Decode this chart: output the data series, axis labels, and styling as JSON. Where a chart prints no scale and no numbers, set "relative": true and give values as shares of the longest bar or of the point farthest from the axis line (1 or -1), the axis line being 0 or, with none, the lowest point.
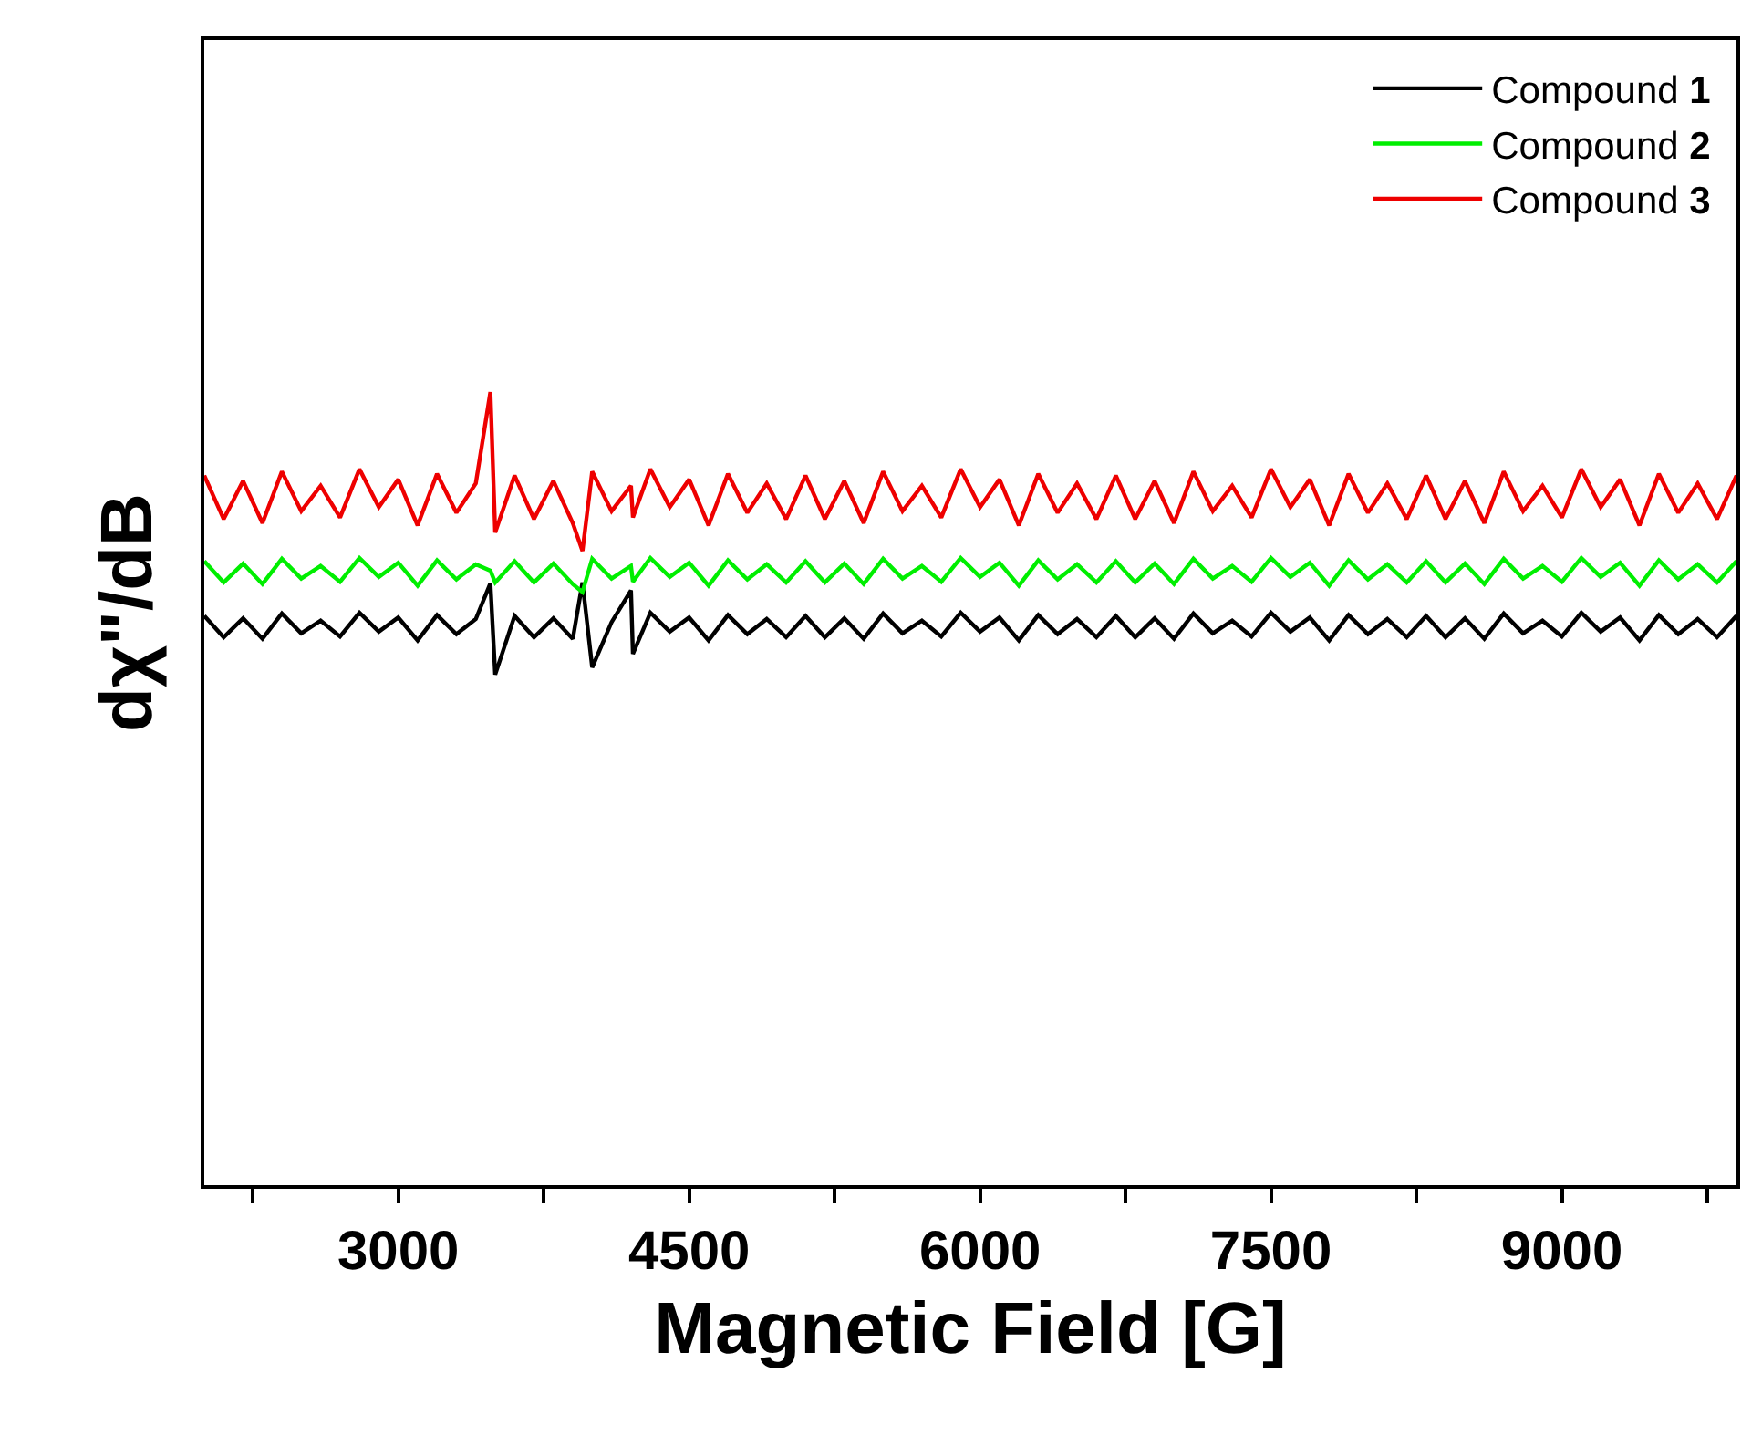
{
  "chart_data": {
    "type": "line",
    "relative": true,
    "xlabel": "Magnetic Field [G]",
    "ylabel": "dχ\"/dB",
    "x": [
      2000,
      2100,
      2200,
      2300,
      2400,
      2500,
      2600,
      2700,
      2800,
      2900,
      3000,
      3100,
      3200,
      3300,
      3400,
      3475,
      3500,
      3600,
      3700,
      3800,
      3900,
      3950,
      4000,
      4100,
      4200,
      4210,
      4300,
      4400,
      4500,
      4600,
      4700,
      4800,
      4900,
      5000,
      5100,
      5200,
      5300,
      5400,
      5500,
      5600,
      5700,
      5800,
      5900,
      6000,
      6100,
      6200,
      6300,
      6400,
      6500,
      6600,
      6700,
      6800,
      6900,
      7000,
      7100,
      7200,
      7300,
      7400,
      7500,
      7600,
      7700,
      7800,
      7900,
      8000,
      8100,
      8200,
      8300,
      8400,
      8500,
      8600,
      8700,
      8800,
      8900,
      9000,
      9100,
      9200,
      9300,
      9400,
      9500,
      9600,
      9700,
      9800,
      9900
    ],
    "xlim": [
      2000,
      9900
    ],
    "xticks": [
      {
        "value": 2250,
        "label": null
      },
      3000,
      {
        "value": 3750,
        "label": null
      },
      4500,
      {
        "value": 5250,
        "label": null
      },
      6000,
      {
        "value": 6750,
        "label": null
      },
      7500,
      {
        "value": 8250,
        "label": null
      },
      9000,
      {
        "value": 9750,
        "label": null
      }
    ],
    "legend": "top right",
    "marker": "none",
    "line_style": "solid",
    "series": [
      {
        "name": "Compound 1",
        "color": "#000000",
        "values": [
          0.718,
          0.691,
          0.715,
          0.689,
          0.721,
          0.696,
          0.712,
          0.692,
          0.722,
          0.698,
          0.716,
          0.687,
          0.719,
          0.695,
          0.714,
          0.759,
          0.644,
          0.718,
          0.691,
          0.715,
          0.689,
          0.76,
          0.653,
          0.71,
          0.75,
          0.67,
          0.722,
          0.698,
          0.716,
          0.687,
          0.719,
          0.695,
          0.714,
          0.691,
          0.718,
          0.691,
          0.715,
          0.689,
          0.721,
          0.696,
          0.712,
          0.692,
          0.722,
          0.698,
          0.716,
          0.687,
          0.719,
          0.695,
          0.714,
          0.691,
          0.718,
          0.691,
          0.715,
          0.689,
          0.721,
          0.696,
          0.712,
          0.692,
          0.722,
          0.698,
          0.716,
          0.687,
          0.719,
          0.695,
          0.714,
          0.691,
          0.718,
          0.691,
          0.715,
          0.689,
          0.721,
          0.696,
          0.712,
          0.692,
          0.722,
          0.698,
          0.716,
          0.687,
          0.719,
          0.695,
          0.714,
          0.691,
          0.718
        ]
      },
      {
        "name": "Compound 2",
        "color": "#00ee00",
        "values": [
          0.787,
          0.76,
          0.784,
          0.758,
          0.79,
          0.765,
          0.781,
          0.761,
          0.791,
          0.767,
          0.785,
          0.756,
          0.788,
          0.764,
          0.783,
          0.775,
          0.76,
          0.787,
          0.76,
          0.784,
          0.758,
          0.748,
          0.79,
          0.765,
          0.781,
          0.761,
          0.791,
          0.767,
          0.785,
          0.756,
          0.788,
          0.764,
          0.783,
          0.76,
          0.787,
          0.76,
          0.784,
          0.758,
          0.79,
          0.765,
          0.781,
          0.761,
          0.791,
          0.767,
          0.785,
          0.756,
          0.788,
          0.764,
          0.783,
          0.76,
          0.787,
          0.76,
          0.784,
          0.758,
          0.79,
          0.765,
          0.781,
          0.761,
          0.791,
          0.767,
          0.785,
          0.756,
          0.788,
          0.764,
          0.783,
          0.76,
          0.787,
          0.76,
          0.784,
          0.758,
          0.79,
          0.765,
          0.781,
          0.761,
          0.791,
          0.767,
          0.785,
          0.756,
          0.788,
          0.764,
          0.783,
          0.76,
          0.787
        ]
      },
      {
        "name": "Compound 3",
        "color": "#ee0000",
        "values": [
          0.895,
          0.84,
          0.888,
          0.835,
          0.9,
          0.85,
          0.882,
          0.842,
          0.903,
          0.855,
          0.89,
          0.832,
          0.897,
          0.848,
          0.885,
          1.0,
          0.823,
          0.895,
          0.84,
          0.888,
          0.835,
          0.8,
          0.9,
          0.85,
          0.882,
          0.842,
          0.903,
          0.855,
          0.89,
          0.832,
          0.897,
          0.848,
          0.885,
          0.84,
          0.895,
          0.84,
          0.888,
          0.835,
          0.9,
          0.85,
          0.882,
          0.842,
          0.903,
          0.855,
          0.89,
          0.832,
          0.897,
          0.848,
          0.885,
          0.84,
          0.895,
          0.84,
          0.888,
          0.835,
          0.9,
          0.85,
          0.882,
          0.842,
          0.903,
          0.855,
          0.89,
          0.832,
          0.897,
          0.848,
          0.885,
          0.84,
          0.895,
          0.84,
          0.888,
          0.835,
          0.9,
          0.85,
          0.882,
          0.842,
          0.903,
          0.855,
          0.89,
          0.832,
          0.897,
          0.848,
          0.885,
          0.84,
          0.895
        ]
      }
    ]
  }
}
